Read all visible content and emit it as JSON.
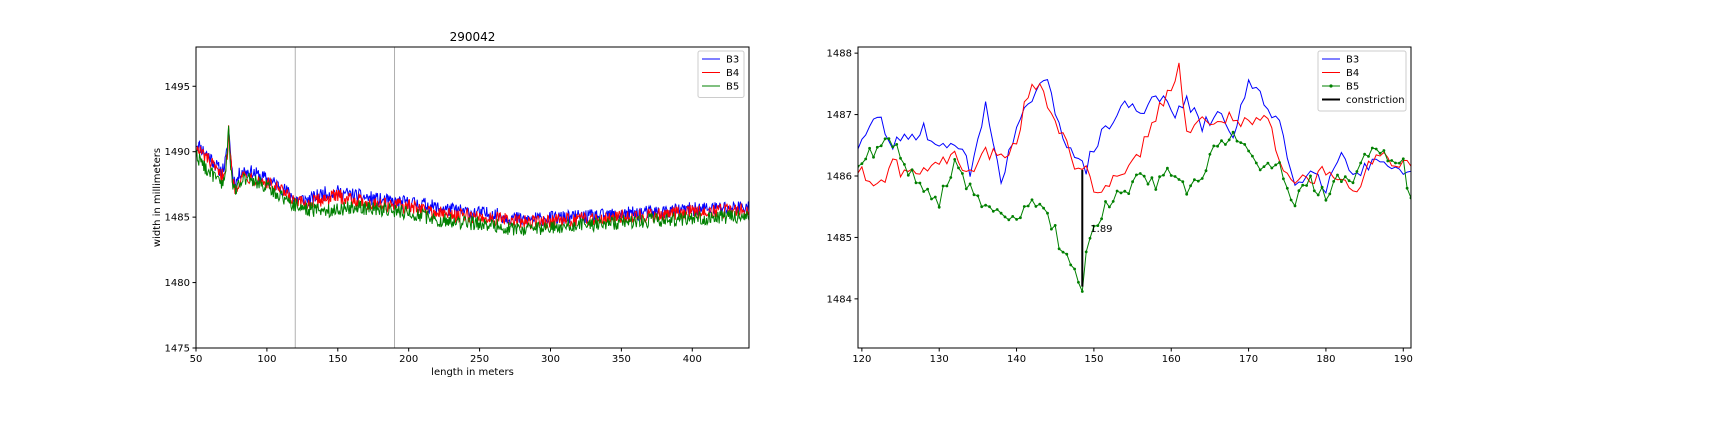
{
  "chart_data": [
    {
      "type": "line",
      "title": "290042",
      "xlabel": "length in meters",
      "ylabel": "width in millimeters",
      "xlim": [
        50,
        440
      ],
      "ylim": [
        1475,
        1498
      ],
      "xticks": [
        50,
        100,
        150,
        200,
        250,
        300,
        350,
        400
      ],
      "yticks": [
        1475,
        1480,
        1485,
        1490,
        1495
      ],
      "vlines": [
        120,
        190
      ],
      "legend_position": "top-right",
      "grid": false,
      "series": [
        {
          "name": "B3",
          "color": "#0000ff",
          "trend": [
            [
              50,
              1490.7
            ],
            [
              55,
              1490.1
            ],
            [
              60,
              1489.6
            ],
            [
              65,
              1488.8
            ],
            [
              68,
              1488.5
            ],
            [
              70,
              1488.9
            ],
            [
              72,
              1490.0
            ],
            [
              73,
              1491.8
            ],
            [
              74,
              1490.4
            ],
            [
              76,
              1488.0
            ],
            [
              78,
              1487.6
            ],
            [
              82,
              1488.6
            ],
            [
              90,
              1488.4
            ],
            [
              100,
              1487.9
            ],
            [
              110,
              1487.3
            ],
            [
              120,
              1486.4
            ],
            [
              130,
              1486.3
            ],
            [
              140,
              1486.8
            ],
            [
              150,
              1486.9
            ],
            [
              160,
              1486.7
            ],
            [
              170,
              1486.5
            ],
            [
              180,
              1486.3
            ],
            [
              190,
              1486.1
            ],
            [
              200,
              1486.1
            ],
            [
              210,
              1486.0
            ],
            [
              220,
              1485.7
            ],
            [
              240,
              1485.4
            ],
            [
              260,
              1485.2
            ],
            [
              280,
              1484.8
            ],
            [
              300,
              1484.9
            ],
            [
              320,
              1485.0
            ],
            [
              340,
              1485.1
            ],
            [
              360,
              1485.3
            ],
            [
              380,
              1485.4
            ],
            [
              400,
              1485.6
            ],
            [
              420,
              1485.7
            ],
            [
              440,
              1485.8
            ]
          ]
        },
        {
          "name": "B4",
          "color": "#ff0000",
          "trend": [
            [
              50,
              1490.2
            ],
            [
              55,
              1489.8
            ],
            [
              60,
              1489.2
            ],
            [
              65,
              1488.4
            ],
            [
              68,
              1488.1
            ],
            [
              70,
              1488.5
            ],
            [
              72,
              1489.6
            ],
            [
              73,
              1491.5
            ],
            [
              74,
              1490.0
            ],
            [
              76,
              1487.6
            ],
            [
              78,
              1487.2
            ],
            [
              82,
              1488.2
            ],
            [
              90,
              1488.0
            ],
            [
              100,
              1487.6
            ],
            [
              110,
              1487.0
            ],
            [
              120,
              1486.1
            ],
            [
              130,
              1486.0
            ],
            [
              140,
              1486.4
            ],
            [
              150,
              1486.6
            ],
            [
              160,
              1486.4
            ],
            [
              170,
              1486.1
            ],
            [
              180,
              1486.0
            ],
            [
              190,
              1485.9
            ],
            [
              200,
              1485.8
            ],
            [
              210,
              1485.6
            ],
            [
              220,
              1485.3
            ],
            [
              240,
              1485.1
            ],
            [
              260,
              1484.9
            ],
            [
              280,
              1484.6
            ],
            [
              300,
              1484.7
            ],
            [
              320,
              1484.8
            ],
            [
              340,
              1485.0
            ],
            [
              360,
              1485.1
            ],
            [
              380,
              1485.2
            ],
            [
              400,
              1485.4
            ],
            [
              420,
              1485.5
            ],
            [
              440,
              1485.6
            ]
          ]
        },
        {
          "name": "B5",
          "color": "#008000",
          "trend": [
            [
              50,
              1489.8
            ],
            [
              55,
              1489.0
            ],
            [
              60,
              1488.4
            ],
            [
              65,
              1487.8
            ],
            [
              68,
              1487.5
            ],
            [
              70,
              1488.0
            ],
            [
              72,
              1489.4
            ],
            [
              73,
              1492.0
            ],
            [
              74,
              1489.6
            ],
            [
              76,
              1487.4
            ],
            [
              78,
              1487.0
            ],
            [
              82,
              1488.0
            ],
            [
              90,
              1487.8
            ],
            [
              100,
              1487.3
            ],
            [
              110,
              1486.6
            ],
            [
              120,
              1485.9
            ],
            [
              130,
              1485.6
            ],
            [
              140,
              1485.5
            ],
            [
              150,
              1485.6
            ],
            [
              160,
              1485.8
            ],
            [
              170,
              1485.7
            ],
            [
              180,
              1485.6
            ],
            [
              190,
              1485.5
            ],
            [
              200,
              1485.3
            ],
            [
              210,
              1485.1
            ],
            [
              220,
              1484.8
            ],
            [
              240,
              1484.6
            ],
            [
              260,
              1484.4
            ],
            [
              280,
              1484.0
            ],
            [
              300,
              1484.2
            ],
            [
              320,
              1484.4
            ],
            [
              340,
              1484.5
            ],
            [
              360,
              1484.7
            ],
            [
              380,
              1484.8
            ],
            [
              400,
              1484.9
            ],
            [
              420,
              1485.0
            ],
            [
              440,
              1485.1
            ]
          ]
        }
      ]
    },
    {
      "type": "line",
      "title": "",
      "xlabel": "",
      "ylabel": "",
      "xlim": [
        119.5,
        191
      ],
      "ylim": [
        1483.2,
        1488.1
      ],
      "xticks": [
        120,
        130,
        140,
        150,
        160,
        170,
        180,
        190
      ],
      "yticks": [
        1484,
        1485,
        1486,
        1487,
        1488
      ],
      "legend_position": "top-right",
      "grid": false,
      "series": [
        {
          "name": "B3",
          "color": "#0000ff",
          "marker": "none",
          "trend": [
            [
              120,
              1486.5
            ],
            [
              122,
              1487.0
            ],
            [
              124,
              1486.5
            ],
            [
              126,
              1486.6
            ],
            [
              128,
              1486.8
            ],
            [
              130,
              1486.4
            ],
            [
              132,
              1486.6
            ],
            [
              134,
              1486.1
            ],
            [
              136,
              1487.1
            ],
            [
              138,
              1486.0
            ],
            [
              140,
              1486.7
            ],
            [
              142,
              1487.3
            ],
            [
              144,
              1487.5
            ],
            [
              146,
              1486.7
            ],
            [
              148,
              1486.2
            ],
            [
              149,
              1486.1
            ],
            [
              150,
              1486.5
            ],
            [
              152,
              1486.8
            ],
            [
              154,
              1487.2
            ],
            [
              156,
              1487.0
            ],
            [
              158,
              1487.4
            ],
            [
              160,
              1487.0
            ],
            [
              162,
              1487.2
            ],
            [
              164,
              1486.8
            ],
            [
              166,
              1487.0
            ],
            [
              168,
              1486.7
            ],
            [
              170,
              1487.5
            ],
            [
              172,
              1487.2
            ],
            [
              174,
              1486.9
            ],
            [
              176,
              1485.8
            ],
            [
              178,
              1486.2
            ],
            [
              180,
              1485.8
            ],
            [
              182,
              1486.4
            ],
            [
              184,
              1486.0
            ],
            [
              186,
              1486.2
            ],
            [
              188,
              1486.1
            ],
            [
              190,
              1486.0
            ],
            [
              191,
              1486.0
            ]
          ]
        },
        {
          "name": "B4",
          "color": "#ff0000",
          "marker": "none",
          "trend": [
            [
              120,
              1486.1
            ],
            [
              122,
              1485.8
            ],
            [
              124,
              1486.2
            ],
            [
              126,
              1486.0
            ],
            [
              128,
              1486.2
            ],
            [
              130,
              1486.2
            ],
            [
              132,
              1486.3
            ],
            [
              134,
              1486.0
            ],
            [
              136,
              1486.4
            ],
            [
              138,
              1486.3
            ],
            [
              140,
              1486.6
            ],
            [
              142,
              1487.6
            ],
            [
              144,
              1487.2
            ],
            [
              146,
              1486.6
            ],
            [
              148,
              1486.1
            ],
            [
              149,
              1486.1
            ],
            [
              150,
              1485.8
            ],
            [
              152,
              1485.9
            ],
            [
              154,
              1486.0
            ],
            [
              156,
              1486.4
            ],
            [
              158,
              1487.0
            ],
            [
              160,
              1487.4
            ],
            [
              161,
              1487.8
            ],
            [
              162,
              1486.8
            ],
            [
              164,
              1486.9
            ],
            [
              166,
              1486.8
            ],
            [
              168,
              1487.0
            ],
            [
              170,
              1486.8
            ],
            [
              172,
              1487.1
            ],
            [
              174,
              1486.3
            ],
            [
              176,
              1485.9
            ],
            [
              178,
              1485.9
            ],
            [
              180,
              1486.1
            ],
            [
              182,
              1486.0
            ],
            [
              184,
              1485.8
            ],
            [
              186,
              1486.3
            ],
            [
              188,
              1486.3
            ],
            [
              190,
              1486.2
            ],
            [
              191,
              1486.1
            ]
          ]
        },
        {
          "name": "B5",
          "color": "#008000",
          "marker": "dot",
          "trend": [
            [
              120,
              1486.2
            ],
            [
              122,
              1486.5
            ],
            [
              124,
              1486.5
            ],
            [
              126,
              1486.1
            ],
            [
              128,
              1485.7
            ],
            [
              130,
              1485.6
            ],
            [
              132,
              1486.2
            ],
            [
              134,
              1485.8
            ],
            [
              136,
              1485.5
            ],
            [
              138,
              1485.4
            ],
            [
              140,
              1485.3
            ],
            [
              142,
              1485.5
            ],
            [
              144,
              1485.4
            ],
            [
              145,
              1485.1
            ],
            [
              146,
              1484.7
            ],
            [
              147,
              1484.6
            ],
            [
              148,
              1484.3
            ],
            [
              148.5,
              1484.2
            ],
            [
              149,
              1484.8
            ],
            [
              150,
              1485.2
            ],
            [
              152,
              1485.6
            ],
            [
              154,
              1485.7
            ],
            [
              156,
              1486.0
            ],
            [
              158,
              1485.9
            ],
            [
              160,
              1486.1
            ],
            [
              162,
              1485.7
            ],
            [
              164,
              1486.0
            ],
            [
              166,
              1486.6
            ],
            [
              168,
              1486.6
            ],
            [
              170,
              1486.5
            ],
            [
              172,
              1486.1
            ],
            [
              174,
              1486.1
            ],
            [
              176,
              1485.6
            ],
            [
              178,
              1485.9
            ],
            [
              180,
              1485.7
            ],
            [
              182,
              1486.0
            ],
            [
              184,
              1486.0
            ],
            [
              186,
              1486.5
            ],
            [
              188,
              1486.3
            ],
            [
              190,
              1486.2
            ],
            [
              191,
              1485.6
            ]
          ]
        }
      ],
      "constriction": {
        "name": "constriction",
        "color": "#000000",
        "x": 148.5,
        "y_from": 1484.2,
        "y_to": 1486.1,
        "label": "1.89"
      }
    }
  ]
}
